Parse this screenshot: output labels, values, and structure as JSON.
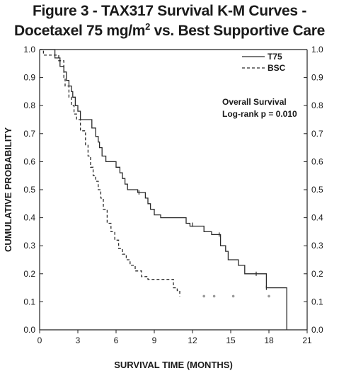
{
  "chart_data": {
    "type": "line",
    "title_line1": "Figure 3 - TAX317 Survival K-M Curves -",
    "title_line2_pre": "Docetaxel 75 mg/m",
    "title_line2_sup": "2",
    "title_line2_post": " vs. Best Supportive Care",
    "xlabel": "SURVIVAL TIME (MONTHS)",
    "ylabel": "CUMULATIVE PROBABILITY",
    "xlim": [
      0,
      21
    ],
    "ylim": [
      0,
      1
    ],
    "x_ticks": [
      "0",
      "3",
      "6",
      "9",
      "12",
      "15",
      "18",
      "21"
    ],
    "y_ticks": [
      "0.0",
      "0.1",
      "0.2",
      "0.3",
      "0.4",
      "0.5",
      "0.6",
      "0.7",
      "0.8",
      "0.9",
      "1.0"
    ],
    "y_ticks_right": [
      "0.0",
      "0.1",
      "0.2",
      "0.3",
      "0.4",
      "0.5",
      "0.6",
      "0.7",
      "0.8",
      "0.9",
      "1.0"
    ],
    "legend_position": "top-right",
    "annotation_line1": "Overall Survival",
    "annotation_line2": "Log-rank p = 0.010",
    "series": [
      {
        "name": "T75",
        "style": "solid",
        "color": "#2a2a2a",
        "steps": [
          [
            0,
            1.0
          ],
          [
            1.2,
            0.97
          ],
          [
            1.6,
            0.94
          ],
          [
            1.9,
            0.92
          ],
          [
            2.1,
            0.89
          ],
          [
            2.3,
            0.87
          ],
          [
            2.5,
            0.85
          ],
          [
            2.6,
            0.83
          ],
          [
            2.8,
            0.8
          ],
          [
            3.0,
            0.78
          ],
          [
            3.2,
            0.75
          ],
          [
            4.1,
            0.72
          ],
          [
            4.4,
            0.69
          ],
          [
            4.6,
            0.67
          ],
          [
            4.7,
            0.65
          ],
          [
            4.9,
            0.62
          ],
          [
            5.2,
            0.6
          ],
          [
            6.0,
            0.58
          ],
          [
            6.3,
            0.56
          ],
          [
            6.5,
            0.54
          ],
          [
            6.7,
            0.52
          ],
          [
            6.9,
            0.5
          ],
          [
            7.7,
            0.49
          ],
          [
            8.3,
            0.47
          ],
          [
            8.5,
            0.45
          ],
          [
            8.7,
            0.43
          ],
          [
            9.0,
            0.41
          ],
          [
            9.5,
            0.4
          ],
          [
            11.5,
            0.38
          ],
          [
            11.8,
            0.37
          ],
          [
            12.9,
            0.35
          ],
          [
            13.5,
            0.34
          ],
          [
            14.2,
            0.3
          ],
          [
            14.6,
            0.28
          ],
          [
            14.8,
            0.25
          ],
          [
            15.6,
            0.23
          ],
          [
            16.1,
            0.2
          ],
          [
            17.8,
            0.15
          ],
          [
            19.4,
            0.0
          ]
        ],
        "censored": [
          [
            7.8,
            0.49
          ],
          [
            12.0,
            0.375
          ],
          [
            14.1,
            0.34
          ],
          [
            17.0,
            0.2
          ],
          [
            17.8,
            0.15
          ]
        ]
      },
      {
        "name": "BSC",
        "style": "dashed",
        "color": "#2a2a2a",
        "steps": [
          [
            0,
            1.0
          ],
          [
            0.3,
            0.98
          ],
          [
            1.5,
            0.96
          ],
          [
            1.9,
            0.9
          ],
          [
            2.0,
            0.87
          ],
          [
            2.3,
            0.83
          ],
          [
            2.5,
            0.8
          ],
          [
            2.7,
            0.77
          ],
          [
            2.9,
            0.75
          ],
          [
            3.2,
            0.71
          ],
          [
            3.6,
            0.66
          ],
          [
            3.8,
            0.62
          ],
          [
            4.0,
            0.58
          ],
          [
            4.2,
            0.55
          ],
          [
            4.4,
            0.53
          ],
          [
            4.6,
            0.5
          ],
          [
            4.8,
            0.47
          ],
          [
            5.0,
            0.43
          ],
          [
            5.3,
            0.38
          ],
          [
            5.6,
            0.35
          ],
          [
            5.9,
            0.32
          ],
          [
            6.2,
            0.29
          ],
          [
            6.5,
            0.27
          ],
          [
            6.8,
            0.25
          ],
          [
            7.1,
            0.23
          ],
          [
            7.5,
            0.21
          ],
          [
            8.0,
            0.19
          ],
          [
            8.5,
            0.18
          ],
          [
            10.5,
            0.15
          ],
          [
            10.8,
            0.14
          ],
          [
            11.0,
            0.12
          ]
        ],
        "censored": [
          [
            12.9,
            0.12
          ],
          [
            13.7,
            0.12
          ],
          [
            15.2,
            0.12
          ],
          [
            18.0,
            0.12
          ]
        ]
      }
    ]
  }
}
